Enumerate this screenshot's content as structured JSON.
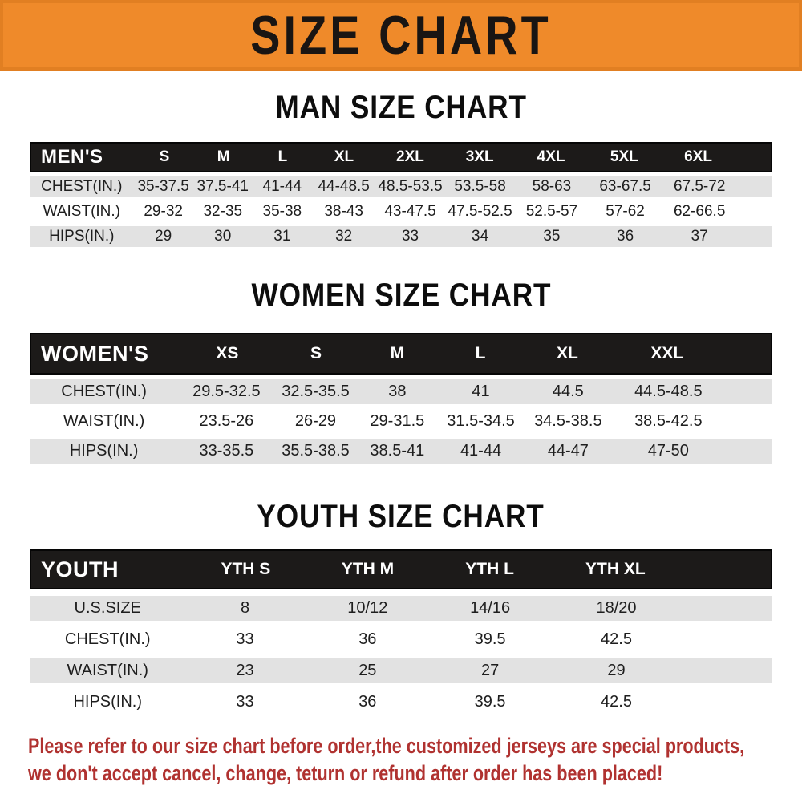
{
  "banner": {
    "title": "SIZE CHART",
    "bg_color": "#ef8a2a",
    "text_color": "#191513"
  },
  "colors": {
    "accent_orange": "#ef8a2a",
    "header_bar_black": "#1c1a19",
    "row_stripe_gray": "#e2e2e2",
    "note_red": "#b03230"
  },
  "sections": [
    {
      "title": "MAN SIZE CHART",
      "header_label": "MEN'S",
      "columns": [
        "S",
        "M",
        "L",
        "XL",
        "2XL",
        "3XL",
        "4XL",
        "5XL",
        "6XL"
      ],
      "rows": [
        {
          "label": "CHEST(IN.)",
          "values": [
            "35-37.5",
            "37.5-41",
            "41-44",
            "44-48.5",
            "48.5-53.5",
            "53.5-58",
            "58-63",
            "63-67.5",
            "67.5-72"
          ]
        },
        {
          "label": "WAIST(IN.)",
          "values": [
            "29-32",
            "32-35",
            "35-38",
            "38-43",
            "43-47.5",
            "47.5-52.5",
            "52.5-57",
            "57-62",
            "62-66.5"
          ]
        },
        {
          "label": "HIPS(IN.)",
          "values": [
            "29",
            "30",
            "31",
            "32",
            "33",
            "34",
            "35",
            "36",
            "37"
          ]
        }
      ]
    },
    {
      "title": "WOMEN SIZE CHART",
      "header_label": "WOMEN'S",
      "columns": [
        "XS",
        "S",
        "M",
        "L",
        "XL",
        "XXL"
      ],
      "rows": [
        {
          "label": "CHEST(IN.)",
          "values": [
            "29.5-32.5",
            "32.5-35.5",
            "38",
            "41",
            "44.5",
            "44.5-48.5"
          ]
        },
        {
          "label": "WAIST(IN.)",
          "values": [
            "23.5-26",
            "26-29",
            "29-31.5",
            "31.5-34.5",
            "34.5-38.5",
            "38.5-42.5"
          ]
        },
        {
          "label": "HIPS(IN.)",
          "values": [
            "33-35.5",
            "35.5-38.5",
            "38.5-41",
            "41-44",
            "44-47",
            "47-50"
          ]
        }
      ]
    },
    {
      "title": "YOUTH SIZE CHART",
      "header_label": "YOUTH",
      "columns": [
        "YTH S",
        "YTH M",
        "YTH L",
        "YTH XL"
      ],
      "rows": [
        {
          "label": "U.S.SIZE",
          "values": [
            "8",
            "10/12",
            "14/16",
            "18/20"
          ]
        },
        {
          "label": "CHEST(IN.)",
          "values": [
            "33",
            "36",
            "39.5",
            "42.5"
          ]
        },
        {
          "label": "WAIST(IN.)",
          "values": [
            "23",
            "25",
            "27",
            "29"
          ]
        },
        {
          "label": "HIPS(IN.)",
          "values": [
            "33",
            "36",
            "39.5",
            "42.5"
          ]
        }
      ]
    }
  ],
  "footer": {
    "lines": [
      "Please refer to our size chart before order,the customized jerseys are special products,",
      "we don't accept cancel, change, teturn or refund after order has been placed!"
    ]
  }
}
